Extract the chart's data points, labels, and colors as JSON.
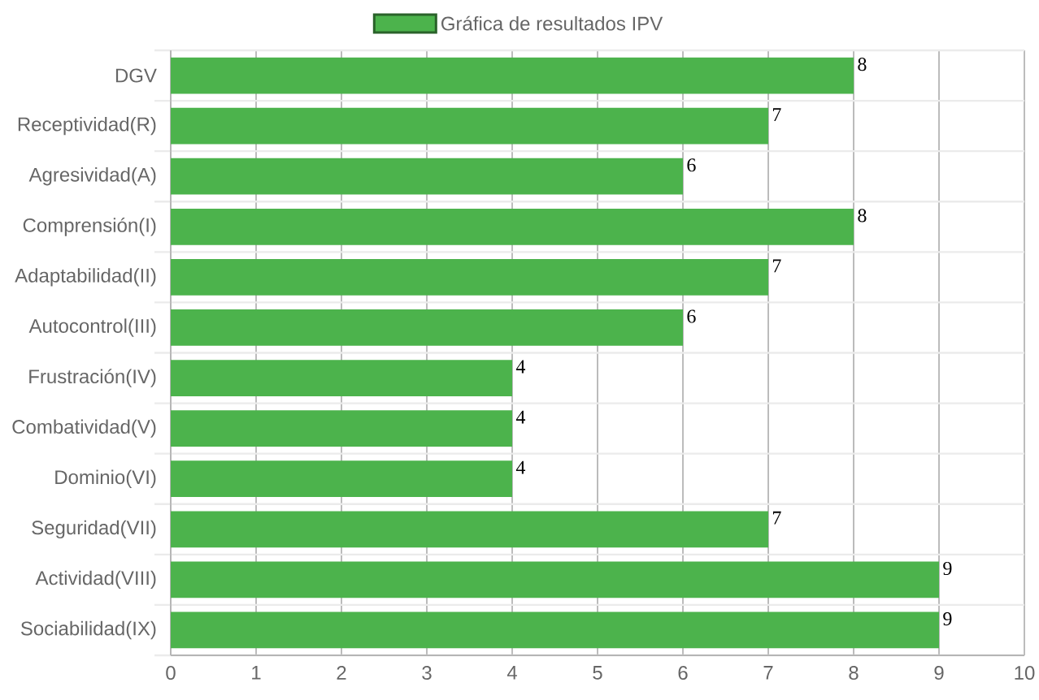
{
  "chart_data": {
    "type": "bar",
    "orientation": "horizontal",
    "categories": [
      "DGV",
      "Receptividad(R)",
      "Agresividad(A)",
      "Comprensión(I)",
      "Adaptabilidad(II)",
      "Autocontrol(III)",
      "Frustración(IV)",
      "Combatividad(V)",
      "Dominio(VI)",
      "Seguridad(VII)",
      "Actividad(VIII)",
      "Sociabilidad(IX)"
    ],
    "series": [
      {
        "name": "Gráfica de resultados IPV",
        "color": "#4cb34c",
        "values": [
          8,
          7,
          6,
          8,
          7,
          6,
          4,
          4,
          4,
          7,
          9,
          9
        ]
      }
    ],
    "xlim": [
      0,
      10
    ],
    "xticks": [
      0,
      1,
      2,
      3,
      4,
      5,
      6,
      7,
      8,
      9,
      10
    ],
    "grid": true,
    "legend": "top",
    "data_labels": true
  }
}
